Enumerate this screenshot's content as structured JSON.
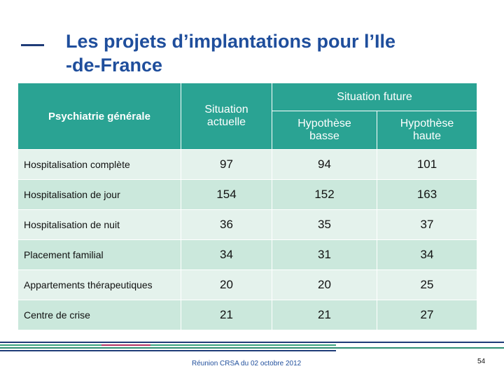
{
  "title_lines": [
    "Les projets d’implantations pour l’Ile",
    "-de-France"
  ],
  "table": {
    "corner": "Psychiatrie générale",
    "header_current": "Situation actuelle",
    "header_future": "Situation future",
    "header_low": "Hypothèse basse",
    "header_high": "Hypothèse haute",
    "rows": [
      [
        "Hospitalisation complète",
        97,
        94,
        101
      ],
      [
        "Hospitalisation de jour",
        154,
        152,
        163
      ],
      [
        "Hospitalisation de nuit",
        36,
        35,
        37
      ],
      [
        "Placement familial",
        34,
        31,
        34
      ],
      [
        "Appartements thérapeutiques",
        20,
        20,
        25
      ],
      [
        "Centre de crise",
        21,
        21,
        27
      ]
    ]
  },
  "footer": {
    "text": "Réunion CRSA du 02 octobre 2012",
    "page": "54"
  }
}
